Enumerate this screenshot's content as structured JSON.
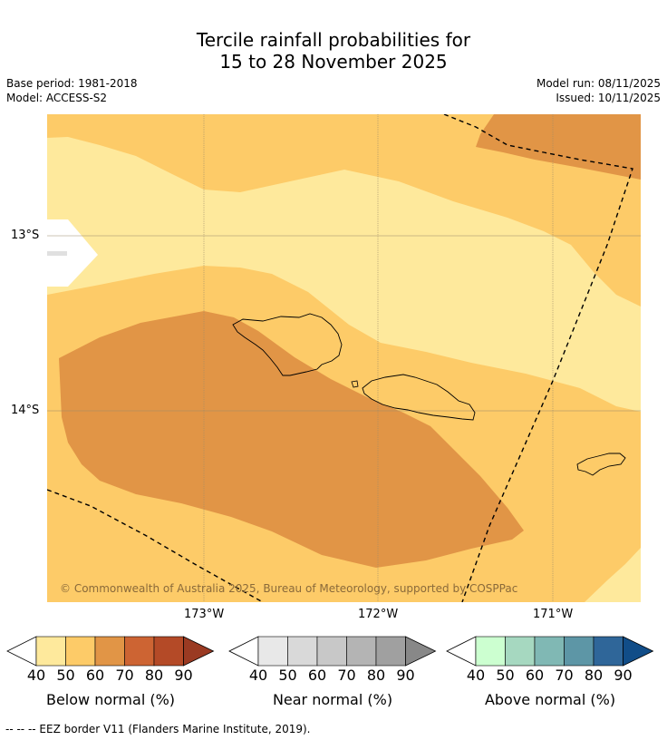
{
  "header": {
    "title_line1": "Tercile rainfall probabilities for",
    "title_line2": "15 to 28 November 2025",
    "base_period": "Base period: 1981-2018",
    "model": "Model: ACCESS-S2",
    "model_run": "Model run: 08/11/2025",
    "issued": "Issued: 10/11/2025"
  },
  "map": {
    "lat_labels": [
      "13°S",
      "14°S"
    ],
    "lon_labels": [
      "173°W",
      "172°W",
      "171°W"
    ],
    "copyright": "© Commonwealth of Australia 2025, Bureau of Meteorology, supported by COSPPac",
    "colors": {
      "below_40_50": "#fee99c",
      "below_50_60": "#fdcb68",
      "below_60_70": "#e19546",
      "land_outline": "#000000",
      "grid": "#9a8a6a"
    }
  },
  "colorbars": [
    {
      "label": "Below normal (%)",
      "ticks": [
        "40",
        "50",
        "60",
        "70",
        "80",
        "90"
      ],
      "colors": [
        "#fee99c",
        "#fdcb68",
        "#e19546",
        "#cd6433",
        "#b44a27",
        "#9a3a22"
      ]
    },
    {
      "label": "Near normal (%)",
      "ticks": [
        "40",
        "50",
        "60",
        "70",
        "80",
        "90"
      ],
      "colors": [
        "#e8e8e8",
        "#d9d9d9",
        "#c8c8c8",
        "#b4b4b4",
        "#a0a0a0",
        "#888888"
      ]
    },
    {
      "label": "Above normal (%)",
      "ticks": [
        "40",
        "50",
        "60",
        "70",
        "80",
        "90"
      ],
      "colors": [
        "#ccffd0",
        "#a6d8c0",
        "#80b8b4",
        "#5d96a6",
        "#2f6699",
        "#114d88"
      ]
    }
  ],
  "footer": {
    "legend_text": "-- -- -- EEZ border V11 (Flanders Marine Institute, 2019)."
  }
}
